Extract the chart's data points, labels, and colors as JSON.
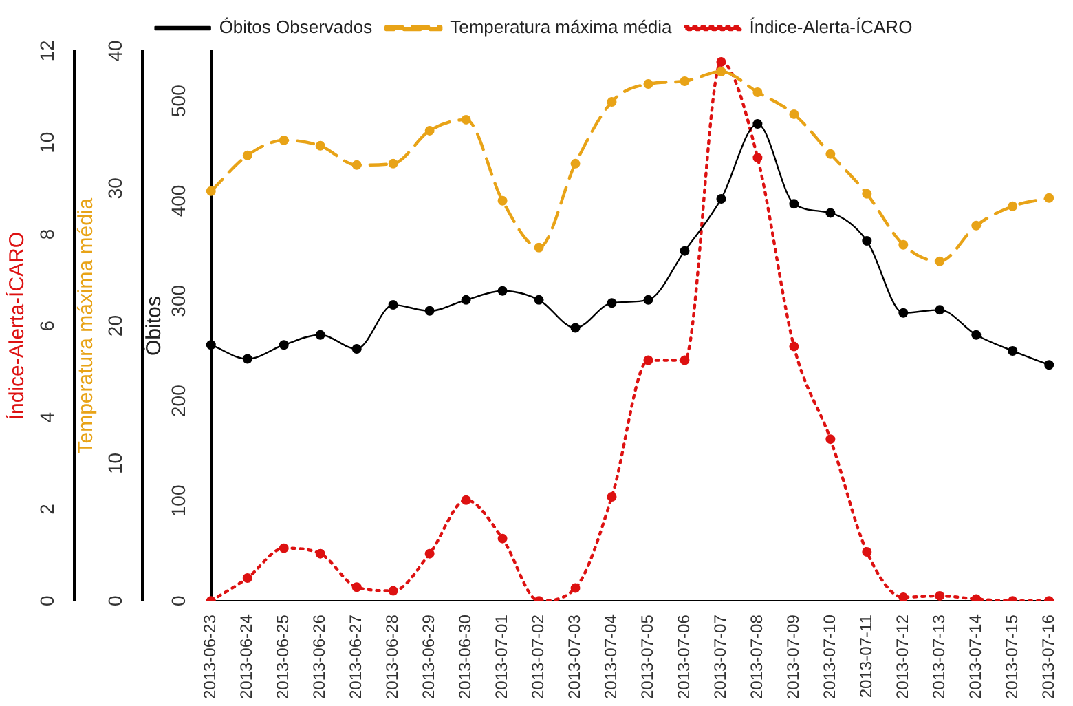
{
  "chart_data": {
    "type": "line",
    "ylabel": "Óbitos",
    "y2label": "Temperatura máxima média",
    "y3label": "Índice-Alerta-ÍCARO",
    "categories": [
      "2013-06-23",
      "2013-06-24",
      "2013-06-25",
      "2013-06-26",
      "2013-06-27",
      "2013-06-28",
      "2013-06-29",
      "2013-06-30",
      "2013-07-01",
      "2013-07-02",
      "2013-07-03",
      "2013-07-04",
      "2013-07-05",
      "2013-07-06",
      "2013-07-07",
      "2013-07-08",
      "2013-07-09",
      "2013-07-10",
      "2013-07-11",
      "2013-07-12",
      "2013-07-13",
      "2013-07-14",
      "2013-07-15",
      "2013-07-16"
    ],
    "series": [
      {
        "name": "Óbitos Observados",
        "color": "#000000",
        "line_style": "solid",
        "values": [
          256,
          242,
          256,
          266,
          252,
          296,
          290,
          301,
          310,
          301,
          273,
          298,
          301,
          350,
          402,
          477,
          397,
          388,
          360,
          288,
          291,
          266,
          250,
          236
        ]
      },
      {
        "name": "Temperatura máxima média",
        "color": "#e8a317",
        "line_style": "dashed",
        "axis": "y2",
        "values": [
          29.8,
          32.4,
          33.5,
          33.1,
          31.7,
          31.8,
          34.2,
          35.0,
          29.1,
          25.7,
          31.8,
          36.3,
          37.6,
          37.8,
          38.5,
          37.0,
          35.4,
          32.5,
          29.6,
          25.9,
          24.7,
          27.3,
          28.7,
          29.3
        ]
      },
      {
        "name": "Índice-Alerta-ÍCARO",
        "color": "#dd1111",
        "line_style": "dotted",
        "axis": "y3",
        "values": [
          0,
          0.5,
          1.15,
          1.03,
          0.3,
          0.22,
          1.03,
          2.2,
          1.36,
          0,
          0.28,
          2.27,
          5.25,
          5.25,
          11.76,
          9.67,
          5.55,
          3.53,
          1.07,
          0.08,
          0.11,
          0.04,
          0,
          0
        ]
      }
    ],
    "ylim": [
      0,
      550
    ],
    "yticks": [
      0,
      100,
      200,
      300,
      400,
      500
    ],
    "y2lim": [
      0,
      40
    ],
    "y2ticks": [
      0,
      10,
      20,
      30,
      40
    ],
    "y3lim": [
      0,
      12
    ],
    "y3ticks": [
      0,
      2,
      4,
      6,
      8,
      10,
      12
    ],
    "grid": false,
    "legend": "top left",
    "marker": "circle"
  }
}
